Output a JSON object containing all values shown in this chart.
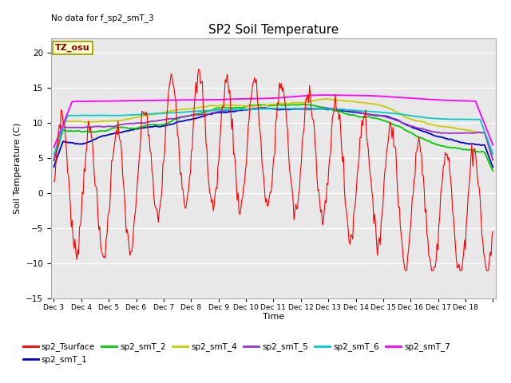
{
  "title": "SP2 Soil Temperature",
  "no_data_label": "No data for f_sp2_smT_3",
  "tz_label": "TZ_osu",
  "xlabel": "Time",
  "ylabel": "Soil Temperature (C)",
  "ylim": [
    -15,
    22
  ],
  "yticks": [
    -15,
    -10,
    -5,
    0,
    5,
    10,
    15,
    20
  ],
  "background_color": "#ffffff",
  "plot_bg_color": "#e8e8e8",
  "grid_color": "#ffffff",
  "series_colors": {
    "sp2_Tsurface": "#ff0000",
    "sp2_smT_1": "#0000cc",
    "sp2_smT_2": "#00cc00",
    "sp2_smT_4": "#cccc00",
    "sp2_smT_5": "#9933cc",
    "sp2_smT_6": "#00cccc",
    "sp2_smT_7": "#ff00ff"
  },
  "n_points": 480,
  "x_start": 2,
  "x_end": 18,
  "xtick_vals": [
    2,
    3,
    4,
    5,
    6,
    7,
    8,
    9,
    10,
    11,
    12,
    13,
    14,
    15,
    16,
    17,
    18
  ],
  "xtick_labels": [
    "Dec 3",
    "Dec 4",
    "Dec 5",
    "Dec 6",
    "Dec 7",
    "Dec 8",
    "Dec 9",
    "Dec 10",
    "Dec 11",
    "Dec 12",
    "Dec 13",
    "Dec 14",
    "Dec 15",
    "Dec 16",
    "Dec 17",
    "Dec 18",
    ""
  ]
}
